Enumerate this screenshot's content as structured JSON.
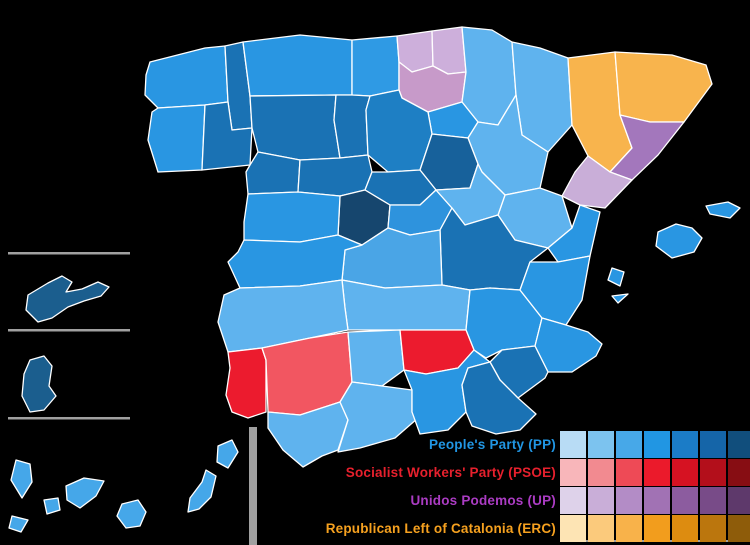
{
  "map": {
    "background": "#000000",
    "border_color": "#ffffff",
    "divider_color": "#a0a0a0",
    "provinces": [
      {
        "name": "a-coruna",
        "party": "pp",
        "fill": "#2996e2"
      },
      {
        "name": "lugo",
        "party": "pp",
        "fill": "#1a72b4"
      },
      {
        "name": "pontevedra",
        "party": "pp",
        "fill": "#2996e2"
      },
      {
        "name": "ourense",
        "party": "pp",
        "fill": "#1a72b4"
      },
      {
        "name": "asturias",
        "party": "pp",
        "fill": "#2996e2"
      },
      {
        "name": "cantabria",
        "party": "pp",
        "fill": "#2f9ae4"
      },
      {
        "name": "bizkaia",
        "party": "up",
        "fill": "#cdafdb"
      },
      {
        "name": "gipuzkoa",
        "party": "up",
        "fill": "#cdafdb"
      },
      {
        "name": "alava",
        "party": "up",
        "fill": "#c79ac9"
      },
      {
        "name": "navarre",
        "party": "pp",
        "fill": "#5fb3ee"
      },
      {
        "name": "la-rioja",
        "party": "pp",
        "fill": "#2996e2"
      },
      {
        "name": "huesca",
        "party": "pp",
        "fill": "#5fb3ee"
      },
      {
        "name": "zaragoza",
        "party": "pp",
        "fill": "#5fb3ee"
      },
      {
        "name": "teruel",
        "party": "pp",
        "fill": "#5fb3ee"
      },
      {
        "name": "lleida",
        "party": "erc",
        "fill": "#f8b44d"
      },
      {
        "name": "girona",
        "party": "erc",
        "fill": "#f8b44d"
      },
      {
        "name": "barcelona",
        "party": "up",
        "fill": "#a377bc"
      },
      {
        "name": "tarragona",
        "party": "up",
        "fill": "#c9aed8"
      },
      {
        "name": "leon",
        "party": "pp",
        "fill": "#1a72b4"
      },
      {
        "name": "palencia",
        "party": "pp",
        "fill": "#1a72b4"
      },
      {
        "name": "burgos",
        "party": "pp",
        "fill": "#1e7fc4"
      },
      {
        "name": "soria",
        "party": "pp",
        "fill": "#17619b"
      },
      {
        "name": "zamora",
        "party": "pp",
        "fill": "#1a72b4"
      },
      {
        "name": "valladolid",
        "party": "pp",
        "fill": "#1a72b4"
      },
      {
        "name": "segovia",
        "party": "pp",
        "fill": "#1a72b4"
      },
      {
        "name": "avila",
        "party": "pp",
        "fill": "#16466e"
      },
      {
        "name": "salamanca",
        "party": "pp",
        "fill": "#2996e2"
      },
      {
        "name": "madrid",
        "party": "pp",
        "fill": "#2e93dd"
      },
      {
        "name": "guadalajara",
        "party": "pp",
        "fill": "#5fb3ee"
      },
      {
        "name": "cuenca",
        "party": "pp",
        "fill": "#1a72b4"
      },
      {
        "name": "toledo",
        "party": "pp",
        "fill": "#4aa5e6"
      },
      {
        "name": "ciudad-real",
        "party": "pp",
        "fill": "#5fb3ee"
      },
      {
        "name": "albacete",
        "party": "pp",
        "fill": "#2996e2"
      },
      {
        "name": "caceres",
        "party": "pp",
        "fill": "#2996e2"
      },
      {
        "name": "badajoz",
        "party": "pp",
        "fill": "#5fb3ee"
      },
      {
        "name": "castellon",
        "party": "pp",
        "fill": "#2996e2"
      },
      {
        "name": "valencia",
        "party": "pp",
        "fill": "#2996e2"
      },
      {
        "name": "alicante",
        "party": "pp",
        "fill": "#2996e2"
      },
      {
        "name": "murcia",
        "party": "pp",
        "fill": "#1a72b4"
      },
      {
        "name": "huelva",
        "party": "psoe",
        "fill": "#ec1b2e"
      },
      {
        "name": "sevilla",
        "party": "psoe",
        "fill": "#f25661"
      },
      {
        "name": "cordoba",
        "party": "pp",
        "fill": "#5fb3ee"
      },
      {
        "name": "jaen",
        "party": "psoe",
        "fill": "#ec1b2e"
      },
      {
        "name": "cadiz",
        "party": "pp",
        "fill": "#5fb3ee"
      },
      {
        "name": "malaga",
        "party": "pp",
        "fill": "#5fb3ee"
      },
      {
        "name": "granada",
        "party": "pp",
        "fill": "#2996e2"
      },
      {
        "name": "almeria",
        "party": "pp",
        "fill": "#1a72b4"
      },
      {
        "name": "mallorca",
        "party": "pp",
        "fill": "#2996e2"
      },
      {
        "name": "menorca",
        "party": "pp",
        "fill": "#2996e2"
      },
      {
        "name": "ibiza",
        "party": "pp",
        "fill": "#2996e2"
      },
      {
        "name": "formentera",
        "party": "pp",
        "fill": "#2996e2"
      },
      {
        "name": "lanzarote",
        "party": "pp",
        "fill": "#45a7e9"
      },
      {
        "name": "fuerteventura",
        "party": "pp",
        "fill": "#45a7e9"
      },
      {
        "name": "gran-canaria",
        "party": "pp",
        "fill": "#45a7e9"
      },
      {
        "name": "tenerife",
        "party": "pp",
        "fill": "#45a7e9"
      },
      {
        "name": "la-gomera",
        "party": "pp",
        "fill": "#45a7e9"
      },
      {
        "name": "la-palma",
        "party": "pp",
        "fill": "#45a7e9"
      },
      {
        "name": "el-hierro",
        "party": "pp",
        "fill": "#45a7e9"
      },
      {
        "name": "ceuta",
        "party": "pp",
        "fill": "#1b5e8e"
      },
      {
        "name": "melilla",
        "party": "pp",
        "fill": "#1b5e8e"
      }
    ]
  },
  "legend": {
    "parties": [
      {
        "id": "pp",
        "label": "People's Party (PP)",
        "text_color": "#2196e3",
        "shades": [
          "#b8dcf5",
          "#7cc3ef",
          "#47a8e8",
          "#2196e3",
          "#1b7cc7",
          "#1565a8",
          "#114e7c"
        ]
      },
      {
        "id": "psoe",
        "label": "Socialist Workers' Party (PSOE)",
        "text_color": "#e6202d",
        "shades": [
          "#f8b6ba",
          "#f28a90",
          "#ee4a56",
          "#eb1a2b",
          "#d61222",
          "#b30f1b",
          "#870d13"
        ]
      },
      {
        "id": "up",
        "label": "Unidos Podemos (UP)",
        "text_color": "#ab3cc3",
        "shades": [
          "#ded2ea",
          "#c9aed8",
          "#b38cc6",
          "#a172b4",
          "#8c5c9f",
          "#784b88",
          "#5e396b"
        ]
      },
      {
        "id": "erc",
        "label": "Republican Left of Catalonia (ERC)",
        "text_color": "#f6a11f",
        "shades": [
          "#fde4b4",
          "#fbca7c",
          "#f8b24a",
          "#f29d1d",
          "#dd8c10",
          "#bb760d",
          "#8e5c0a"
        ]
      }
    ]
  }
}
